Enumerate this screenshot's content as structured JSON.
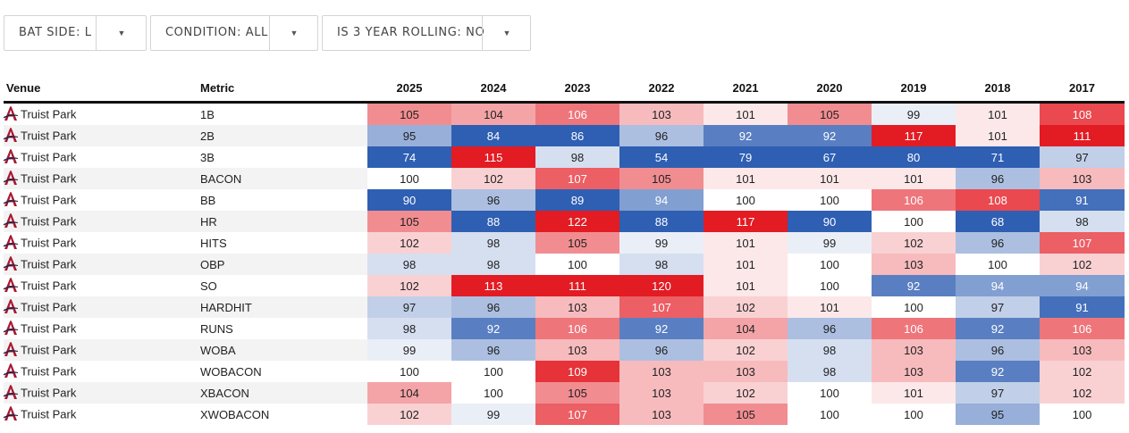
{
  "filters": [
    {
      "label": "BAT SIDE: L"
    },
    {
      "label": "CONDITION: ALL"
    },
    {
      "label": "IS 3 YEAR ROLLING: NO"
    }
  ],
  "table": {
    "venue_header": "Venue",
    "metric_header": "Metric",
    "years": [
      "2025",
      "2024",
      "2023",
      "2022",
      "2021",
      "2020",
      "2019",
      "2018",
      "2017"
    ],
    "rows": [
      {
        "venue": "Truist Park",
        "metric": "1B",
        "values": [
          105,
          104,
          106,
          103,
          101,
          105,
          99,
          101,
          108
        ]
      },
      {
        "venue": "Truist Park",
        "metric": "2B",
        "values": [
          95,
          84,
          86,
          96,
          92,
          92,
          117,
          101,
          111
        ]
      },
      {
        "venue": "Truist Park",
        "metric": "3B",
        "values": [
          74,
          115,
          98,
          54,
          79,
          67,
          80,
          71,
          97
        ]
      },
      {
        "venue": "Truist Park",
        "metric": "BACON",
        "values": [
          100,
          102,
          107,
          105,
          101,
          101,
          101,
          96,
          103
        ]
      },
      {
        "venue": "Truist Park",
        "metric": "BB",
        "values": [
          90,
          96,
          89,
          94,
          100,
          100,
          106,
          108,
          91
        ]
      },
      {
        "venue": "Truist Park",
        "metric": "HR",
        "values": [
          105,
          88,
          122,
          88,
          117,
          90,
          100,
          68,
          98
        ]
      },
      {
        "venue": "Truist Park",
        "metric": "HITS",
        "values": [
          102,
          98,
          105,
          99,
          101,
          99,
          102,
          96,
          107
        ]
      },
      {
        "venue": "Truist Park",
        "metric": "OBP",
        "values": [
          98,
          98,
          100,
          98,
          101,
          100,
          103,
          100,
          102
        ]
      },
      {
        "venue": "Truist Park",
        "metric": "SO",
        "values": [
          102,
          113,
          111,
          120,
          101,
          100,
          92,
          94,
          94
        ]
      },
      {
        "venue": "Truist Park",
        "metric": "HARDHIT",
        "values": [
          97,
          96,
          103,
          107,
          102,
          101,
          100,
          97,
          91
        ]
      },
      {
        "venue": "Truist Park",
        "metric": "RUNS",
        "values": [
          98,
          92,
          106,
          92,
          104,
          96,
          106,
          92,
          106
        ]
      },
      {
        "venue": "Truist Park",
        "metric": "WOBA",
        "values": [
          99,
          96,
          103,
          96,
          102,
          98,
          103,
          96,
          103
        ]
      },
      {
        "venue": "Truist Park",
        "metric": "WOBACON",
        "values": [
          100,
          100,
          109,
          103,
          103,
          98,
          103,
          92,
          102
        ]
      },
      {
        "venue": "Truist Park",
        "metric": "XBACON",
        "values": [
          104,
          100,
          105,
          103,
          102,
          100,
          101,
          97,
          102
        ]
      },
      {
        "venue": "Truist Park",
        "metric": "XWOBACON",
        "values": [
          102,
          99,
          107,
          103,
          105,
          100,
          100,
          95,
          100
        ]
      }
    ]
  },
  "colors": {
    "high": "#e31b23",
    "low": "#2f5fb3",
    "neutral": "#ffffff",
    "alt_row": "#f3f3f3"
  },
  "icons": {
    "venue_logo": "braves-a-logo-icon",
    "dropdown": "caret-down-icon"
  }
}
